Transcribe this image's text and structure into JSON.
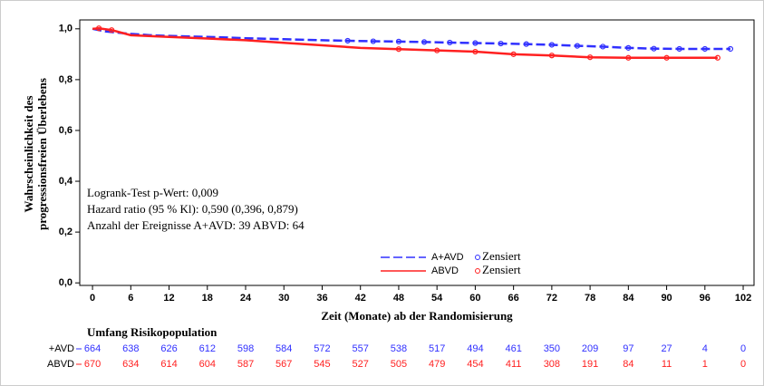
{
  "chart_data": {
    "type": "line",
    "ylabel": [
      "Wahrscheinlichkeit des",
      "progressionsfreien Überlebens"
    ],
    "xlabel": "Zeit (Monate) ab der Randomisierung",
    "annotations": [
      "Logrank-Test p-Wert: 0,009",
      "Hazard ratio (95 % Kl): 0,590 (0,396, 0,879)",
      "Anzahl der Ereignisse A+AVD: 39 ABVD: 64"
    ],
    "censor_label": "Zensiert",
    "xlim": [
      -2,
      103.7
    ],
    "ylim": [
      -0.01,
      1.035
    ],
    "xticks": [
      0,
      6,
      12,
      18,
      24,
      30,
      36,
      42,
      48,
      54,
      60,
      66,
      72,
      78,
      84,
      90,
      96,
      102
    ],
    "yticks": [
      {
        "value": 0.0,
        "label": "0,0"
      },
      {
        "value": 0.2,
        "label": "0,2"
      },
      {
        "value": 0.4,
        "label": "0,4"
      },
      {
        "value": 0.6,
        "label": "0,6"
      },
      {
        "value": 0.8,
        "label": "0,8"
      },
      {
        "value": 1.0,
        "label": "1,0"
      }
    ],
    "series": [
      {
        "name": "A+AVD",
        "color": "#3030ff",
        "dash": true,
        "x": [
          0,
          2,
          4,
          6,
          9,
          12,
          15,
          18,
          21,
          24,
          27,
          30,
          33,
          36,
          40,
          44,
          48,
          52,
          56,
          60,
          64,
          68,
          72,
          76,
          80,
          84,
          88,
          92,
          96,
          100
        ],
        "values": [
          1.0,
          0.99,
          0.985,
          0.98,
          0.975,
          0.972,
          0.97,
          0.968,
          0.966,
          0.963,
          0.961,
          0.959,
          0.957,
          0.955,
          0.953,
          0.951,
          0.95,
          0.948,
          0.946,
          0.944,
          0.942,
          0.94,
          0.937,
          0.933,
          0.93,
          0.925,
          0.922,
          0.921,
          0.921,
          0.921
        ],
        "censored_x": [
          40,
          44,
          48,
          52,
          56,
          60,
          64,
          68,
          72,
          76,
          80,
          84,
          88,
          92,
          96,
          100
        ],
        "censored_values": [
          0.953,
          0.951,
          0.95,
          0.948,
          0.946,
          0.944,
          0.942,
          0.94,
          0.937,
          0.933,
          0.93,
          0.925,
          0.922,
          0.921,
          0.921,
          0.921
        ]
      },
      {
        "name": "ABVD",
        "color": "#ff2020",
        "dash": false,
        "x": [
          0,
          1,
          3,
          6,
          12,
          18,
          24,
          30,
          36,
          42,
          48,
          54,
          60,
          66,
          72,
          78,
          84,
          90,
          98
        ],
        "values": [
          1.0,
          1.002,
          0.995,
          0.975,
          0.968,
          0.962,
          0.955,
          0.945,
          0.935,
          0.925,
          0.92,
          0.915,
          0.91,
          0.9,
          0.895,
          0.888,
          0.886,
          0.886,
          0.886
        ],
        "censored_x": [
          1,
          3,
          48,
          54,
          60,
          66,
          72,
          78,
          84,
          90,
          98
        ],
        "censored_values": [
          1.002,
          0.995,
          0.92,
          0.915,
          0.91,
          0.9,
          0.895,
          0.888,
          0.886,
          0.886,
          0.886
        ]
      }
    ],
    "risk_table": {
      "title": "Umfang Risikopopulation",
      "rows": [
        {
          "name": "+AVD",
          "color": "#3030ff",
          "values": [
            664,
            638,
            626,
            612,
            598,
            584,
            572,
            557,
            538,
            517,
            494,
            461,
            350,
            209,
            97,
            27,
            4,
            0
          ]
        },
        {
          "name": "ABVD",
          "color": "#ff2020",
          "values": [
            670,
            634,
            614,
            604,
            587,
            567,
            545,
            527,
            505,
            479,
            454,
            411,
            308,
            191,
            84,
            11,
            1,
            0
          ]
        }
      ]
    }
  }
}
